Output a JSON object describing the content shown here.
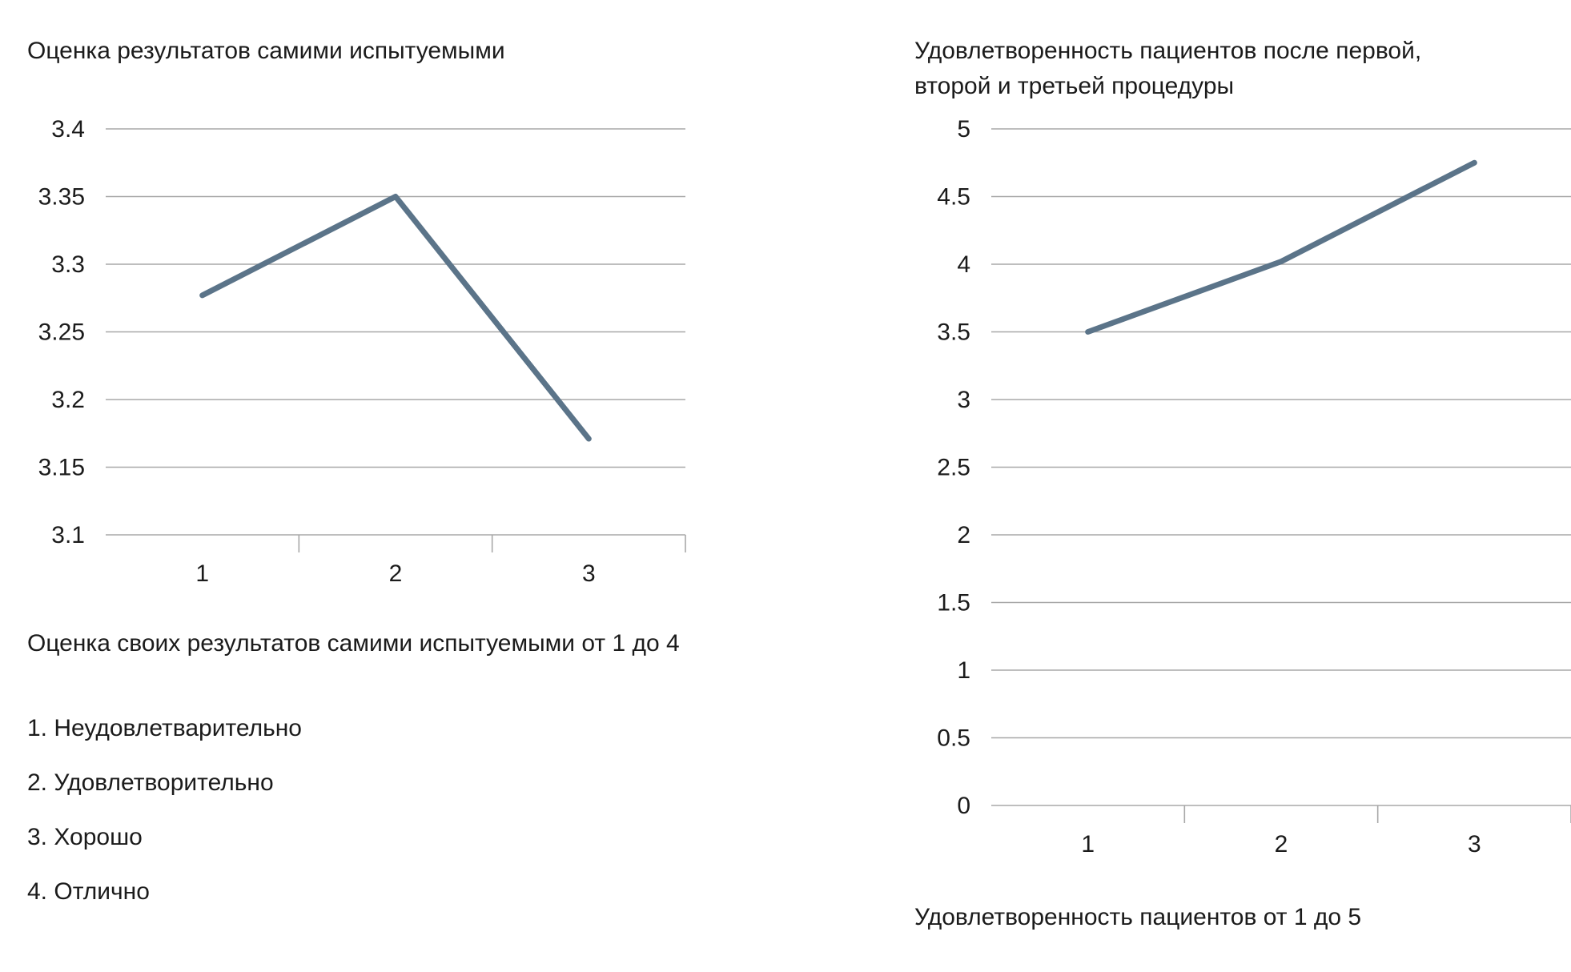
{
  "chart_data": [
    {
      "type": "line",
      "title": "Оценка результатов самими испытуемыми",
      "caption": "Оценка своих результатов самими испытуемыми от 1 до 4",
      "categories": [
        "1",
        "2",
        "3"
      ],
      "series": [
        {
          "values": [
            3.277,
            3.35,
            3.171
          ]
        }
      ],
      "yticks": [
        "3.4",
        "3.35",
        "3.3",
        "3.25",
        "3.2",
        "3.15",
        "3.1"
      ],
      "ylim": [
        3.1,
        3.4
      ],
      "grid": true,
      "color": "#5b7489"
    },
    {
      "type": "line",
      "title_lines": [
        "Удовлетворенность пациентов после первой,",
        "второй и третьей процедуры"
      ],
      "caption": "Удовлетворенность пациентов от 1 до 5",
      "categories": [
        "1",
        "2",
        "3"
      ],
      "series": [
        {
          "values": [
            3.5,
            4.02,
            4.75
          ]
        }
      ],
      "yticks": [
        "5",
        "4.5",
        "4",
        "3.5",
        "3",
        "2.5",
        "2",
        "1.5",
        "1",
        "0.5",
        "0"
      ],
      "ylim": [
        0,
        5
      ],
      "grid": true,
      "color": "#5b7489"
    }
  ],
  "legend": {
    "items": [
      "1. Неудовлетварительно",
      "2. Удовлетворительно",
      "3. Хорошо",
      "4. Отлично"
    ]
  }
}
